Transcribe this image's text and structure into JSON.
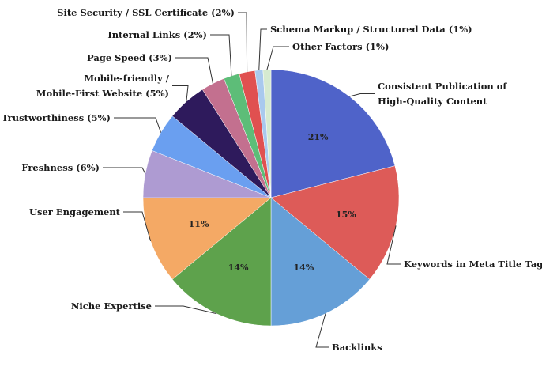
{
  "chart_data": {
    "type": "pie",
    "title": "",
    "slices": [
      {
        "label": "Consistent Publication of High-Quality Content",
        "lines": [
          "Consistent Publication of",
          "High-Quality Content"
        ],
        "value": 21,
        "inner_label": "21%",
        "color": "#4f63c9"
      },
      {
        "label": "Keywords in Meta Title Tags",
        "lines": [
          "Keywords in Meta Title Tags"
        ],
        "value": 15,
        "inner_label": "15%",
        "color": "#dd5b58"
      },
      {
        "label": "Backlinks",
        "lines": [
          "Backlinks"
        ],
        "value": 14,
        "inner_label": "14%",
        "color": "#659fd7"
      },
      {
        "label": "Niche Expertise",
        "lines": [
          "Niche Expertise"
        ],
        "value": 14,
        "inner_label": "14%",
        "color": "#5ea24c"
      },
      {
        "label": "User Engagement",
        "lines": [
          "User Engagement"
        ],
        "value": 11,
        "inner_label": "11%",
        "color": "#f4a965"
      },
      {
        "label": "Freshness (6%)",
        "lines": [
          "Freshness (6%)"
        ],
        "value": 6,
        "inner_label": "",
        "color": "#ae9bd2"
      },
      {
        "label": "Trustworthiness (5%)",
        "lines": [
          "Trustworthiness (5%)"
        ],
        "value": 5,
        "inner_label": "",
        "color": "#6a9ff0"
      },
      {
        "label": "Mobile-friendly / Mobile-First Website (5%)",
        "lines": [
          "Mobile-friendly /",
          "Mobile-First Website (5%)"
        ],
        "value": 5,
        "inner_label": "",
        "color": "#2e1a5c"
      },
      {
        "label": "Page Speed (3%)",
        "lines": [
          "Page Speed (3%)"
        ],
        "value": 3,
        "inner_label": "",
        "color": "#c3708f"
      },
      {
        "label": "Internal Links (2%)",
        "lines": [
          "Internal Links (2%)"
        ],
        "value": 2,
        "inner_label": "",
        "color": "#5dbd78"
      },
      {
        "label": "Site Security / SSL Certificate (2%)",
        "lines": [
          "Site Security / SSL Certificate (2%)"
        ],
        "value": 2,
        "inner_label": "",
        "color": "#e05050"
      },
      {
        "label": "Schema Markup / Structured Data (1%)",
        "lines": [
          "Schema Markup / Structured Data (1%)"
        ],
        "value": 1,
        "inner_label": "",
        "color": "#a9c9ee"
      },
      {
        "label": "Other Factors (1%)",
        "lines": [
          "Other Factors (1%)"
        ],
        "value": 1,
        "inner_label": "",
        "color": "#d6ead0"
      }
    ]
  }
}
